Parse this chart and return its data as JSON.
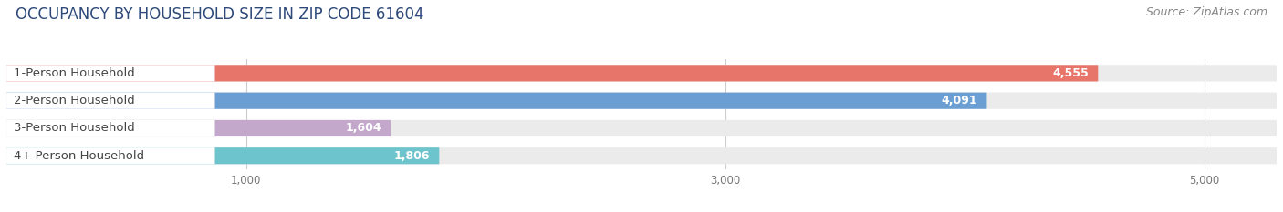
{
  "title": "OCCUPANCY BY HOUSEHOLD SIZE IN ZIP CODE 61604",
  "source": "Source: ZipAtlas.com",
  "categories": [
    "1-Person Household",
    "2-Person Household",
    "3-Person Household",
    "4+ Person Household"
  ],
  "values": [
    4555,
    4091,
    1604,
    1806
  ],
  "bar_colors": [
    "#E8756A",
    "#6B9FD4",
    "#C4A8CC",
    "#6EC4CC"
  ],
  "background_color": "#FFFFFF",
  "bar_bg_color": "#EBEBEB",
  "label_bg_color": "#FFFFFF",
  "label_text_color": "#444444",
  "value_text_color": "#FFFFFF",
  "title_color": "#2E4A7A",
  "source_color": "#888888",
  "xlim_max": 5300,
  "xticks": [
    1000,
    3000,
    5000
  ],
  "title_fontsize": 12,
  "source_fontsize": 9,
  "label_fontsize": 9.5,
  "value_fontsize": 9,
  "tick_fontsize": 8.5
}
